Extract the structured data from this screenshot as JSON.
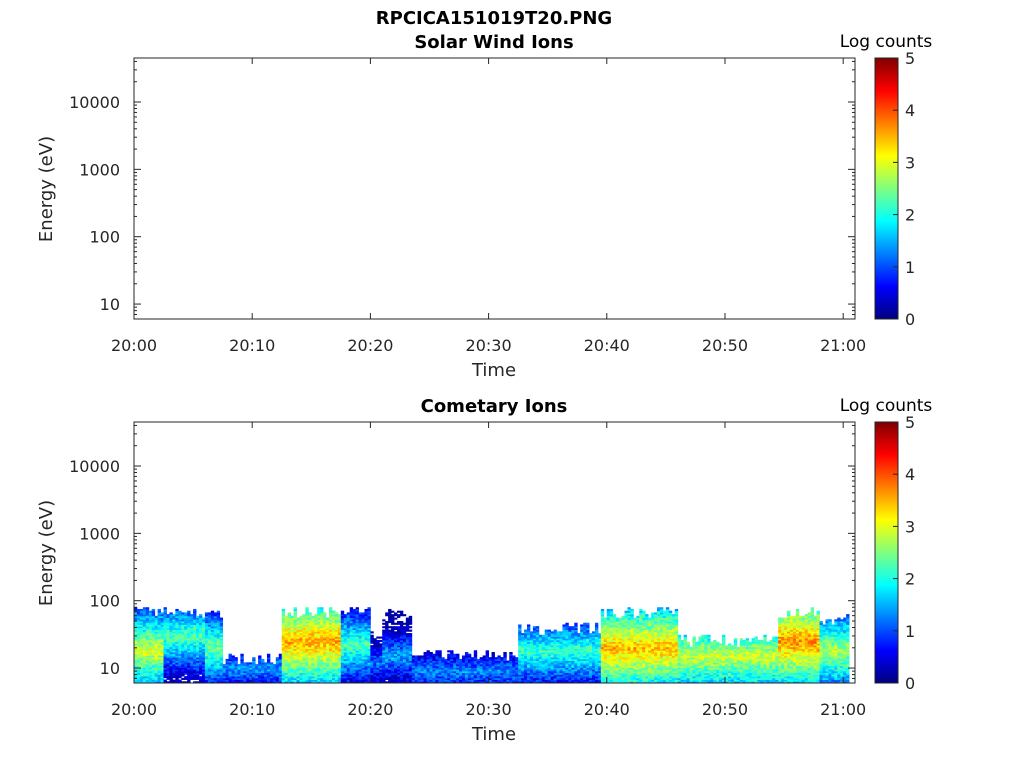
{
  "figure_title": "RPCICA151019T20.PNG",
  "colormap": {
    "label": "Log counts",
    "range": [
      0,
      5
    ],
    "ticks": [
      "0",
      "1",
      "2",
      "3",
      "4",
      "5"
    ],
    "stops": [
      "#00007f",
      "#0000ff",
      "#007fff",
      "#00ffff",
      "#7fff7f",
      "#ffff00",
      "#ff7f00",
      "#ff0000",
      "#7f0000"
    ]
  },
  "chart_data": [
    {
      "type": "heatmap",
      "title": "Solar Wind Ions",
      "xlabel": "Time",
      "ylabel": "Energy (eV)",
      "x_ticks": [
        "20:00",
        "20:10",
        "20:20",
        "20:30",
        "20:40",
        "20:50",
        "21:00"
      ],
      "x_range_minutes": [
        0,
        61
      ],
      "y_scale": "log",
      "y_ticks": [
        "10",
        "100",
        "1000",
        "10000"
      ],
      "y_range": [
        6,
        45000
      ],
      "z_label": "Log counts",
      "z_range": [
        0,
        5
      ],
      "segments": []
    },
    {
      "type": "heatmap",
      "title": "Cometary Ions",
      "xlabel": "Time",
      "ylabel": "Energy (eV)",
      "x_ticks": [
        "20:00",
        "20:10",
        "20:20",
        "20:30",
        "20:40",
        "20:50",
        "21:00"
      ],
      "x_range_minutes": [
        0,
        61
      ],
      "y_scale": "log",
      "y_ticks": [
        "10",
        "100",
        "1000",
        "10000"
      ],
      "y_range": [
        6,
        45000
      ],
      "z_label": "Log counts",
      "z_range": [
        0,
        5
      ],
      "segments": [
        {
          "t": [
            0.0,
            2.5
          ],
          "emax": 80,
          "peak_e": 18,
          "peak_z": 3.0
        },
        {
          "t": [
            2.5,
            6.0
          ],
          "emax": 80,
          "peak_e": 30,
          "peak_z": 2.3
        },
        {
          "t": [
            6.0,
            7.5
          ],
          "emax": 75,
          "peak_e": 20,
          "peak_z": 2.5
        },
        {
          "t": [
            7.5,
            12.5
          ],
          "emax": 16,
          "peak_e": 10,
          "peak_z": 1.4
        },
        {
          "t": [
            12.5,
            17.5
          ],
          "emax": 80,
          "peak_e": 25,
          "peak_z": 3.6
        },
        {
          "t": [
            17.5,
            20.0
          ],
          "emax": 80,
          "peak_e": 22,
          "peak_z": 2.3
        },
        {
          "t": [
            20.0,
            21.0
          ],
          "emax": 40,
          "peak_e": 12,
          "peak_z": 1.2
        },
        {
          "t": [
            21.0,
            23.5
          ],
          "emax": 80,
          "peak_e": 15,
          "peak_z": 1.5
        },
        {
          "t": [
            23.5,
            32.5
          ],
          "emax": 18,
          "peak_e": 9,
          "peak_z": 1.3
        },
        {
          "t": [
            32.5,
            39.5
          ],
          "emax": 45,
          "peak_e": 18,
          "peak_z": 2.2
        },
        {
          "t": [
            39.5,
            46.0
          ],
          "emax": 80,
          "peak_e": 20,
          "peak_z": 3.5
        },
        {
          "t": [
            46.0,
            54.5
          ],
          "emax": 30,
          "peak_e": 15,
          "peak_z": 2.9
        },
        {
          "t": [
            54.5,
            58.0
          ],
          "emax": 80,
          "peak_e": 25,
          "peak_z": 3.7
        },
        {
          "t": [
            58.0,
            60.5
          ],
          "emax": 60,
          "peak_e": 18,
          "peak_z": 2.8
        }
      ]
    }
  ]
}
